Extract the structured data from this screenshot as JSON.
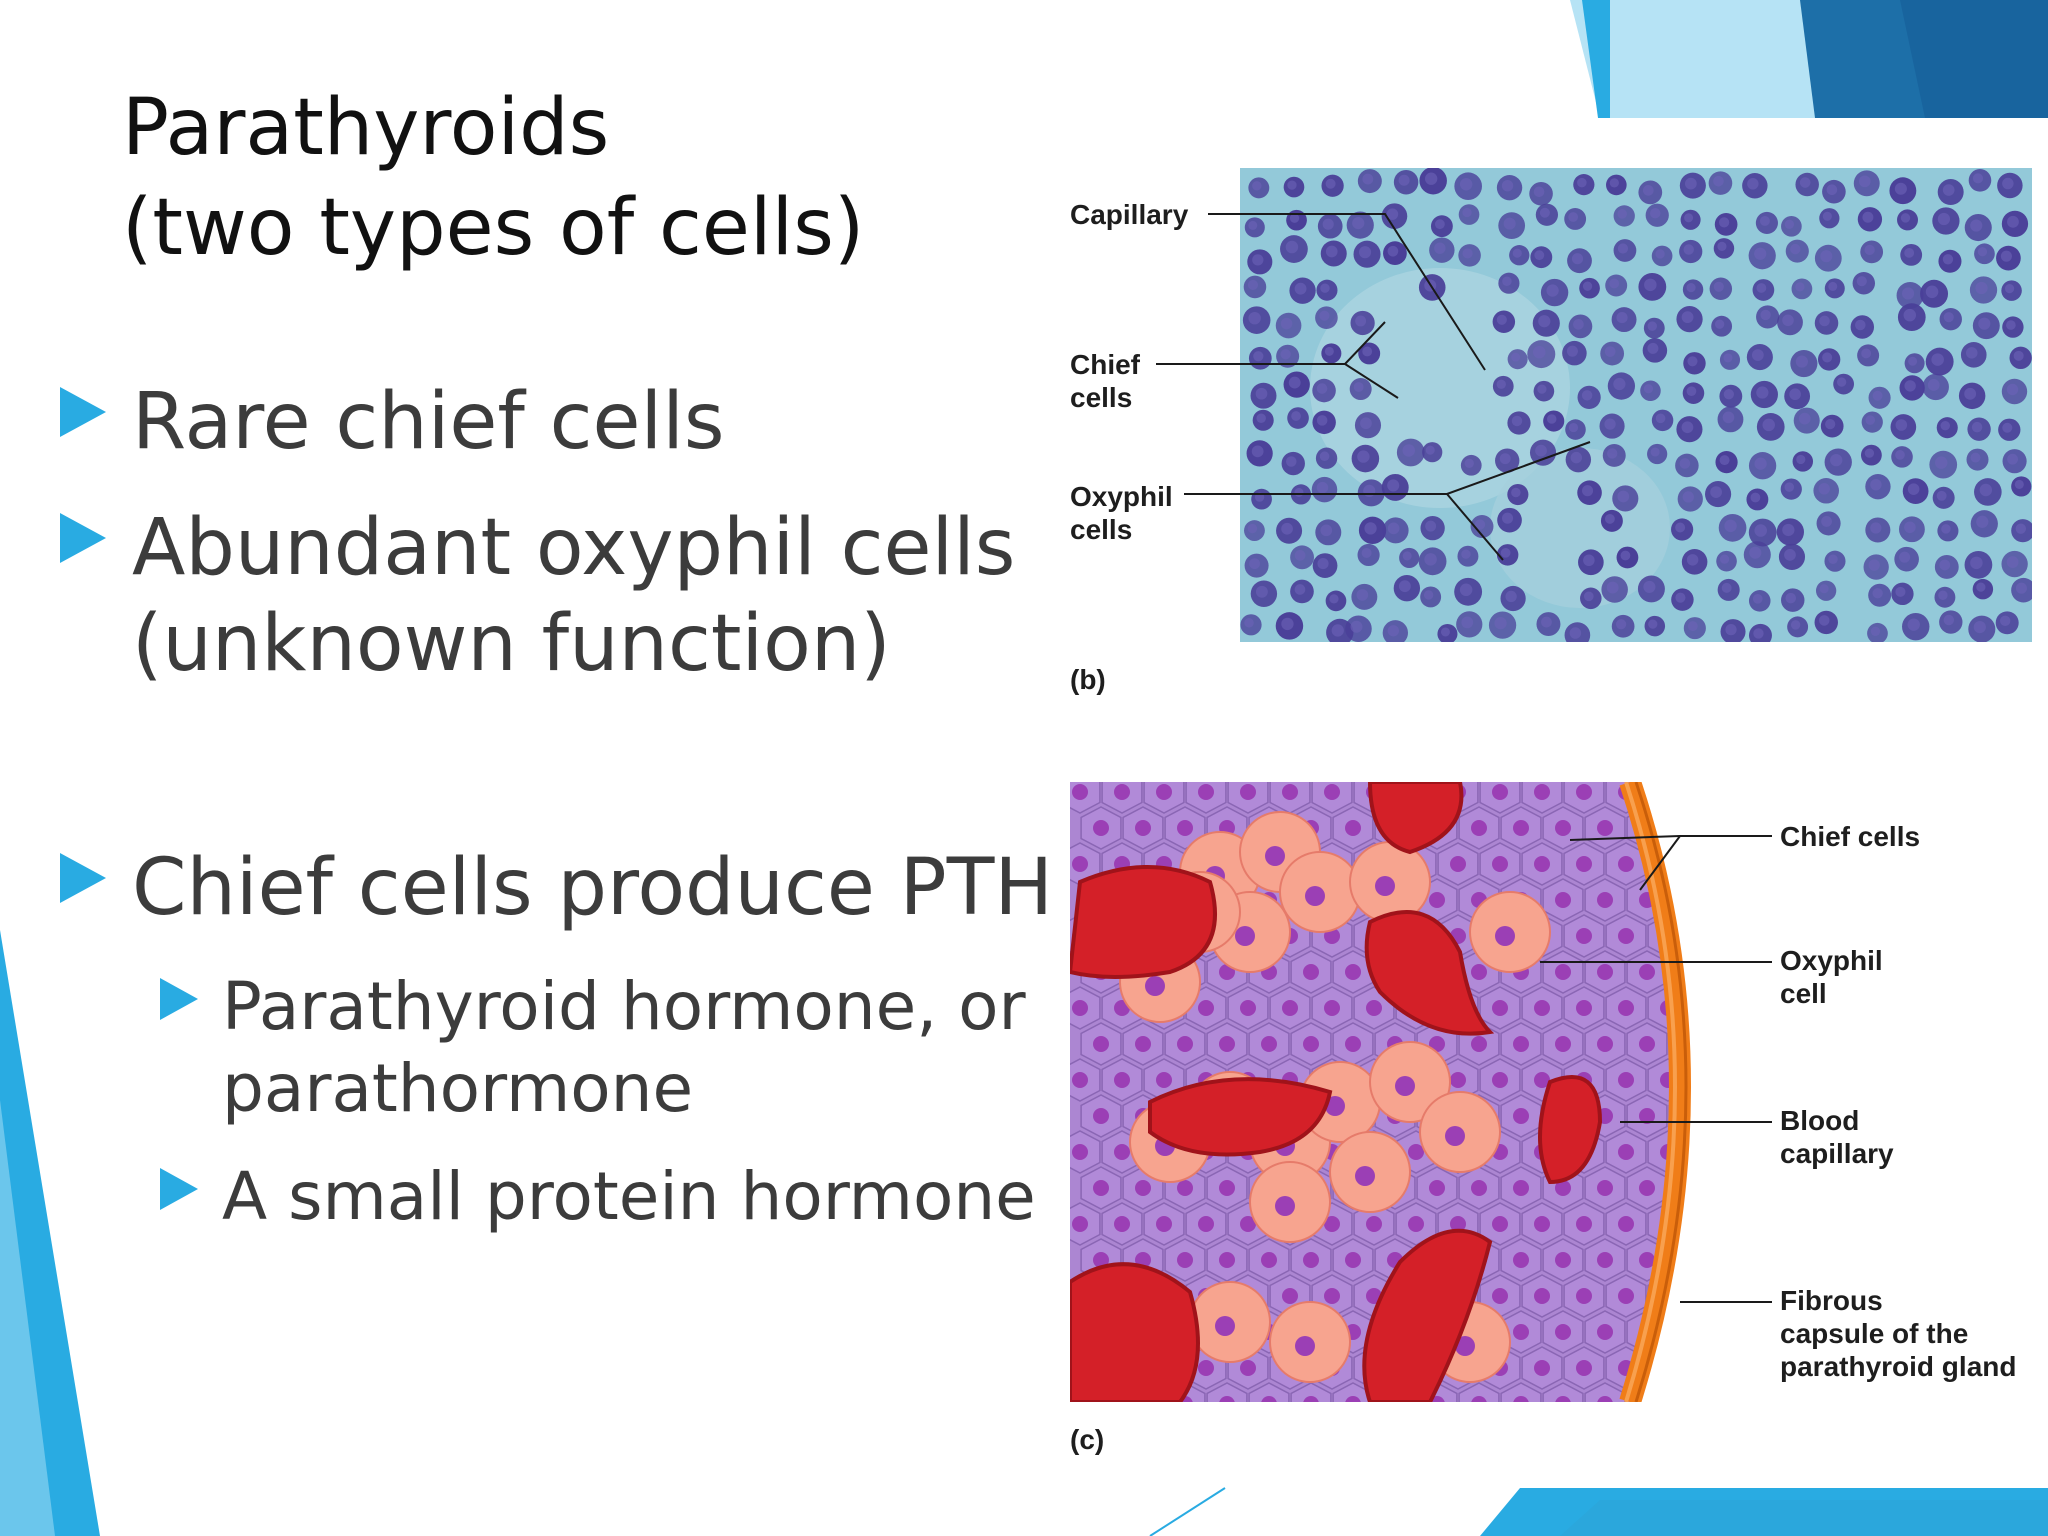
{
  "slide": {
    "title": {
      "line1": "Parathyroids",
      "line2": "(two types of cells)"
    },
    "bullets": [
      {
        "level": 1,
        "lines": [
          "Rare chief cells"
        ]
      },
      {
        "level": 1,
        "lines": [
          "Abundant oxyphil cells",
          "(unknown function)"
        ]
      },
      {
        "level": 1,
        "lines": [
          "Chief cells produce PTH"
        ]
      },
      {
        "level": 2,
        "lines": [
          "Parathyroid hormone, or",
          "parathormone"
        ]
      },
      {
        "level": 2,
        "lines": [
          "A small protein hormone"
        ]
      }
    ],
    "accent_color": "#29abe2"
  },
  "figure_b": {
    "tag": "(b)",
    "labels": {
      "capillary": "Capillary",
      "chief_line1": "Chief",
      "chief_line2": "cells",
      "oxyphil_line1": "Oxyphil",
      "oxyphil_line2": "cells"
    },
    "colors": {
      "background": "#92c8d8",
      "nucleus": "#4a3f98"
    }
  },
  "figure_c": {
    "tag": "(c)",
    "labels": {
      "chief": "Chief cells",
      "oxyphil_line1": "Oxyphil",
      "oxyphil_line2": "cell",
      "blood_line1": "Blood",
      "blood_line2": "capillary",
      "fibrous_line1": "Fibrous",
      "fibrous_line2": "capsule of the",
      "fibrous_line3": "parathyroid gland"
    },
    "colors": {
      "chief_cell": "#b18ad8",
      "oxyphil_cell": "#f7a48f",
      "capillary": "#d42028",
      "capsule": "#f07d18"
    }
  }
}
